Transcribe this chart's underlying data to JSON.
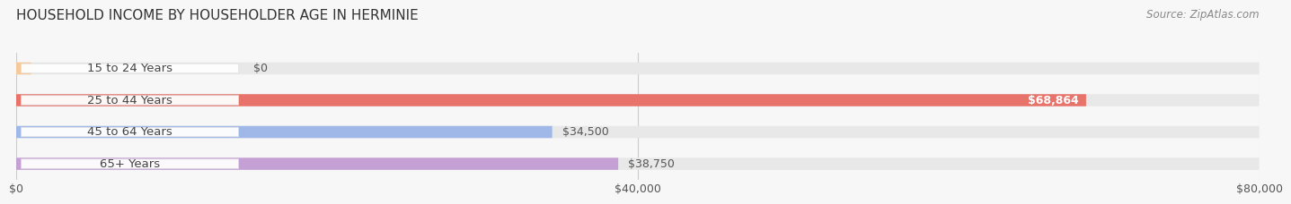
{
  "title": "HOUSEHOLD INCOME BY HOUSEHOLDER AGE IN HERMINIE",
  "source": "Source: ZipAtlas.com",
  "categories": [
    "15 to 24 Years",
    "25 to 44 Years",
    "45 to 64 Years",
    "65+ Years"
  ],
  "values": [
    0,
    68864,
    34500,
    38750
  ],
  "bar_colors": [
    "#f5c99a",
    "#e8736a",
    "#9fb8e8",
    "#c4a0d4"
  ],
  "background_color": "#f7f7f7",
  "bar_bg_color": "#e8e8e8",
  "xlim": [
    0,
    80000
  ],
  "xtick_labels": [
    "$0",
    "$40,000",
    "$80,000"
  ],
  "xtick_values": [
    0,
    40000,
    80000
  ],
  "bar_height": 0.38,
  "value_labels": [
    "$0",
    "$68,864",
    "$34,500",
    "$38,750"
  ],
  "value_inside": [
    false,
    true,
    false,
    false
  ],
  "title_fontsize": 11,
  "source_fontsize": 8.5,
  "label_fontsize": 9.5,
  "value_fontsize": 9,
  "tick_fontsize": 9
}
